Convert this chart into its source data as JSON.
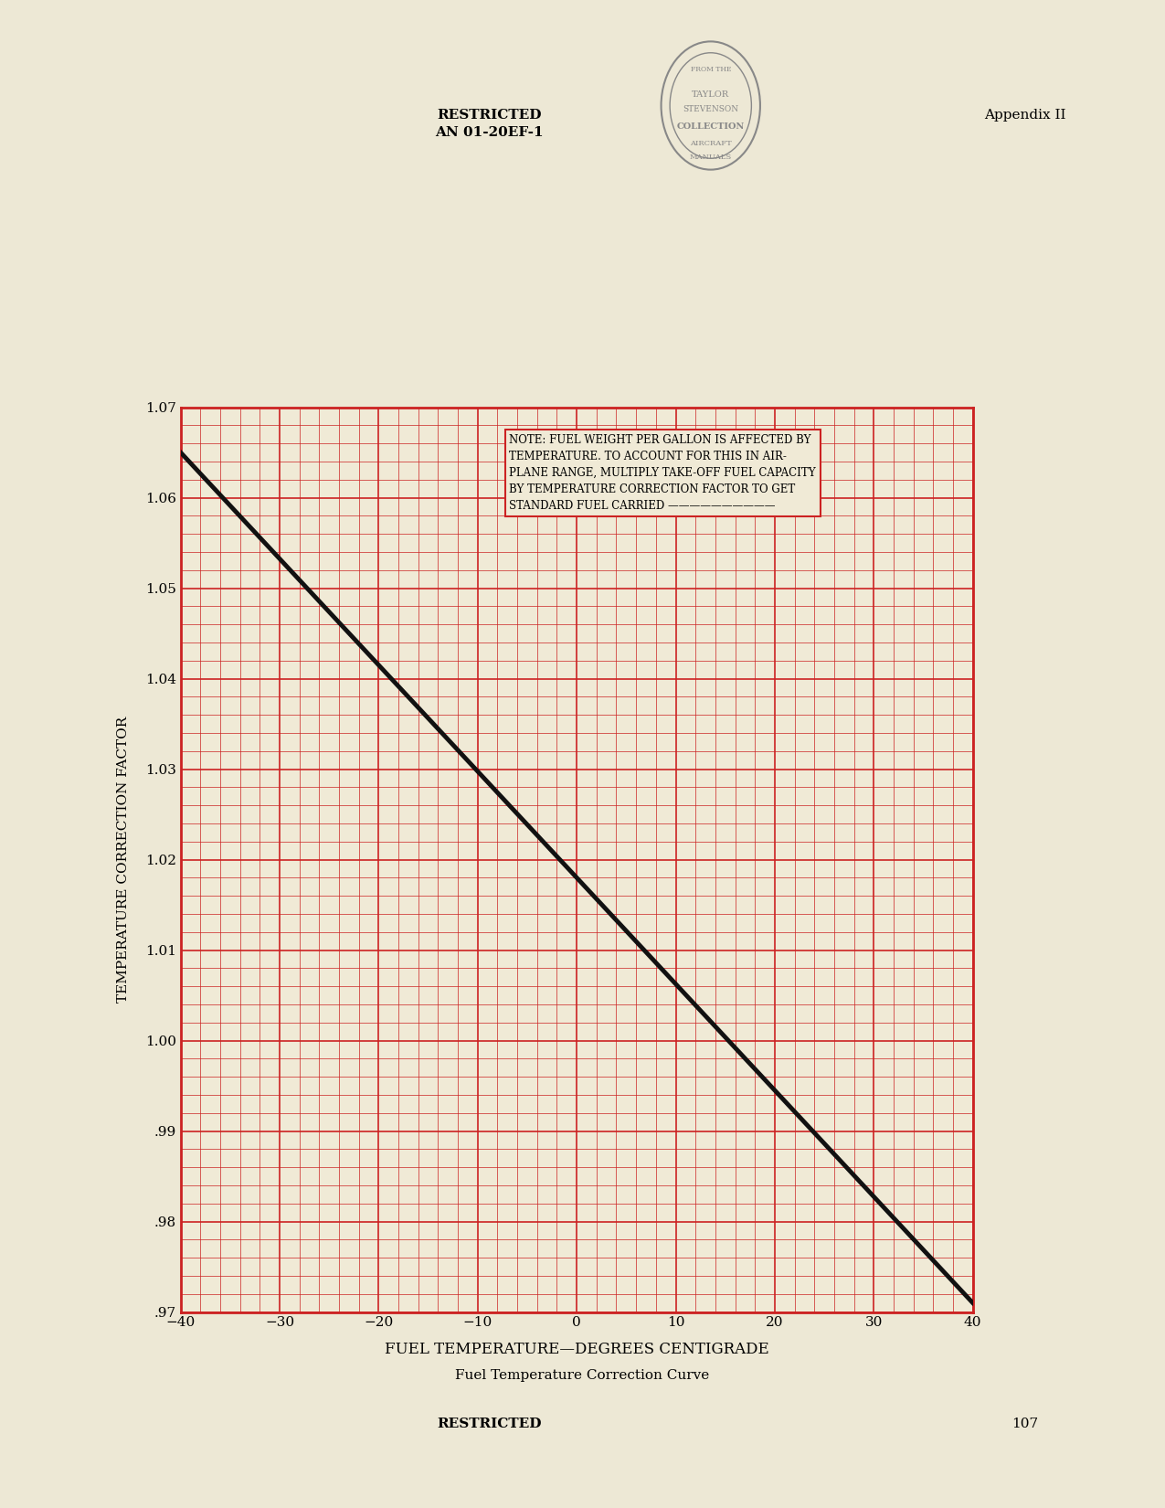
{
  "bg_color": "#f0ead6",
  "page_bg": "#ede8d5",
  "grid_color": "#cc2222",
  "line_color": "#111111",
  "header_left": "RESTRICTED\nAN 01-20EF-1",
  "header_right": "Appendix II",
  "footer_center": "Fuel Temperature Correction Curve",
  "footer_restricted": "RESTRICTED",
  "footer_page": "107",
  "ylabel": "TEMPERATURE CORRECTION FACTOR",
  "xlabel": "FUEL TEMPERATURE—DEGREES CENTIGRADE",
  "xlim": [
    -40,
    40
  ],
  "ylim": [
    0.97,
    1.07
  ],
  "xticks": [
    -40,
    -30,
    -20,
    -10,
    0,
    10,
    20,
    30,
    40
  ],
  "yticks": [
    0.97,
    0.98,
    0.99,
    1.0,
    1.01,
    1.02,
    1.03,
    1.04,
    1.05,
    1.06,
    1.07
  ],
  "ytick_labels": [
    ".97",
    ".98",
    ".99",
    "1.00",
    "1.01",
    "1.02",
    "1.03",
    "1.04",
    "1.05",
    "1.06",
    "1.07"
  ],
  "xtick_labels": [
    "−40",
    "−30",
    "−20",
    "−10",
    "0",
    "10",
    "20",
    "30",
    "40"
  ],
  "line_x": [
    -40,
    40
  ],
  "line_y": [
    1.065,
    0.971
  ],
  "note_text": "NOTE: FUEL WEIGHT PER GALLON IS AFFECTED BY\nTEMPERATURE. TO ACCOUNT FOR THIS IN AIR-\nPLANE RANGE, MULTIPLY TAKE-OFF FUEL CAPACITY\nBY TEMPERATURE CORRECTION FACTOR TO GET\nSTANDARD FUEL CARRIED ——————————",
  "stamp_text": "FROM THE\nTAYLOR\nSTEVENSON\nCOLLECTION\nAIRCRAFT\nMANUALS"
}
